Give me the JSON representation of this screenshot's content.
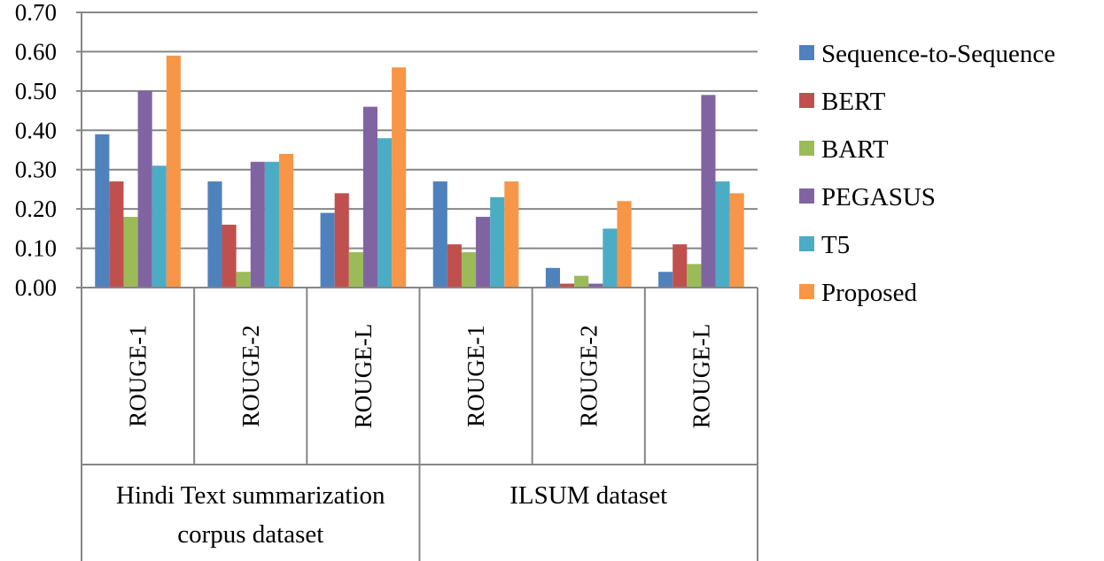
{
  "chart_data": {
    "type": "bar",
    "title": "",
    "xlabel": "",
    "ylabel": "",
    "ylim": [
      0,
      0.7
    ],
    "y_ticks": [
      "0.00",
      "0.10",
      "0.20",
      "0.30",
      "0.40",
      "0.50",
      "0.60",
      "0.70"
    ],
    "grid": true,
    "legend_position": "right",
    "groups": [
      {
        "label": "Hindi Text summarization corpus dataset",
        "lines": [
          "Hindi Text summarization",
          "corpus dataset"
        ]
      },
      {
        "label": "ILSUM dataset",
        "lines": [
          "ILSUM dataset"
        ]
      }
    ],
    "categories": [
      "ROUGE-1",
      "ROUGE-2",
      "ROUGE-L",
      "ROUGE-1",
      "ROUGE-2",
      "ROUGE-L"
    ],
    "category_group": [
      0,
      0,
      0,
      1,
      1,
      1
    ],
    "series": [
      {
        "name": "Sequence-to-Sequence",
        "color": "#4F81BD",
        "values": [
          0.39,
          0.27,
          0.19,
          0.27,
          0.05,
          0.04
        ]
      },
      {
        "name": "BERT",
        "color": "#C0504D",
        "values": [
          0.27,
          0.16,
          0.24,
          0.11,
          0.01,
          0.11
        ]
      },
      {
        "name": "BART",
        "color": "#9BBB59",
        "values": [
          0.18,
          0.04,
          0.09,
          0.09,
          0.03,
          0.06
        ]
      },
      {
        "name": "PEGASUS",
        "color": "#8064A2",
        "values": [
          0.5,
          0.32,
          0.46,
          0.18,
          0.01,
          0.49
        ]
      },
      {
        "name": "T5",
        "color": "#4BACC6",
        "values": [
          0.31,
          0.32,
          0.38,
          0.23,
          0.15,
          0.27
        ]
      },
      {
        "name": "Proposed",
        "color": "#F79646",
        "values": [
          0.59,
          0.34,
          0.56,
          0.27,
          0.22,
          0.24
        ]
      }
    ]
  }
}
